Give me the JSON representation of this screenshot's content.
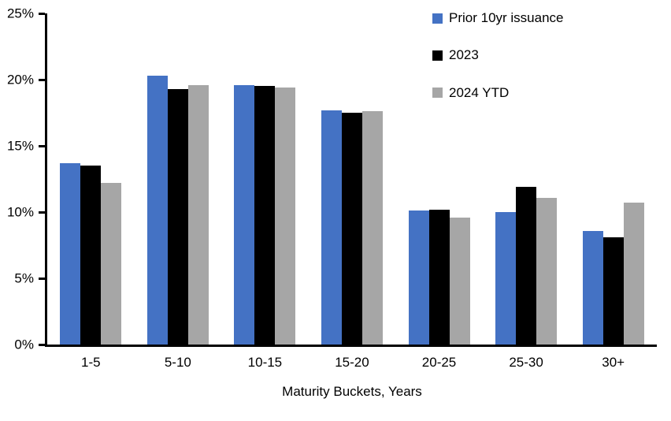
{
  "chart_data": {
    "type": "bar",
    "title": "",
    "xlabel": "Maturity Buckets, Years",
    "ylabel": "",
    "categories": [
      "1-5",
      "5-10",
      "10-15",
      "15-20",
      "20-25",
      "25-30",
      "30+"
    ],
    "series": [
      {
        "name": "Prior 10yr issuance",
        "color": "#4472C4",
        "values": [
          13.7,
          20.3,
          19.6,
          17.7,
          10.1,
          10.0,
          8.6
        ]
      },
      {
        "name": "2023",
        "color": "#000000",
        "values": [
          13.5,
          19.3,
          19.5,
          17.5,
          10.2,
          11.9,
          8.1
        ]
      },
      {
        "name": "2024 YTD",
        "color": "#A6A6A6",
        "values": [
          12.2,
          19.6,
          19.4,
          17.6,
          9.6,
          11.1,
          10.7
        ]
      }
    ],
    "ylim": [
      0,
      25
    ],
    "yticks": [
      0,
      5,
      10,
      15,
      20,
      25
    ],
    "ytick_labels": [
      "0%",
      "5%",
      "10%",
      "15%",
      "20%",
      "25%"
    ],
    "grid": false,
    "legend_position": "top-right",
    "background_color": "#FFFFFF",
    "axis_color": "#000000"
  }
}
